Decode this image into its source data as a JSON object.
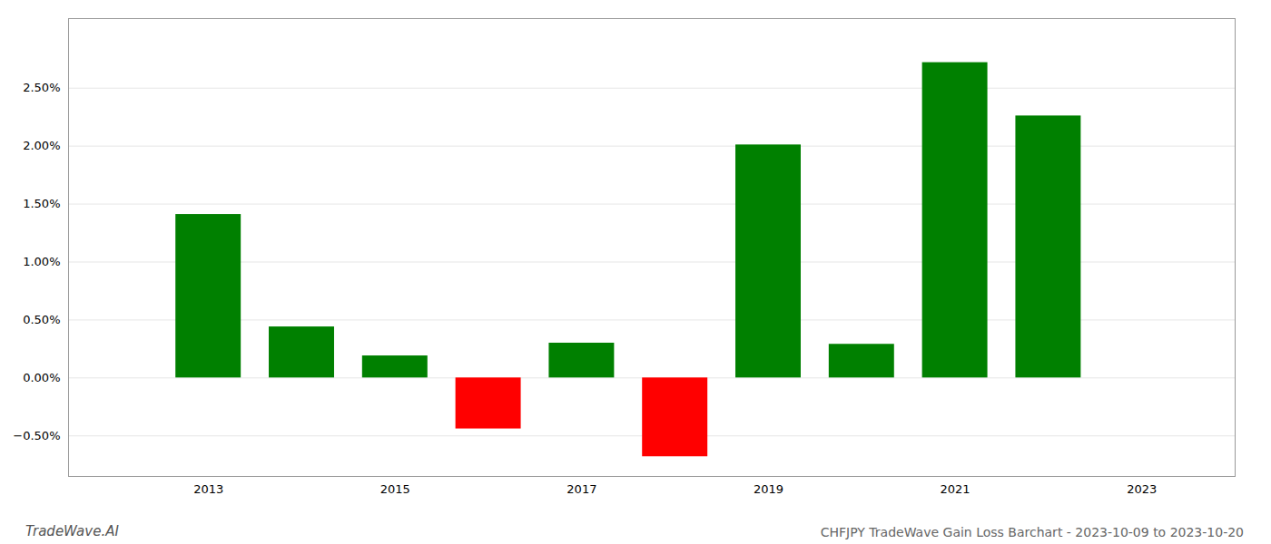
{
  "chart_data": {
    "type": "bar",
    "title": "CHFJPY TradeWave Gain Loss Barchart - 2023-10-09 to 2023-10-20",
    "annotations": [
      "TradeWave.AI"
    ],
    "x": [
      2013,
      2014,
      2015,
      2016,
      2017,
      2018,
      2019,
      2020,
      2021,
      2022
    ],
    "values": [
      1.41,
      0.44,
      0.19,
      -0.44,
      0.3,
      -0.68,
      2.01,
      0.29,
      2.72,
      2.26
    ],
    "colors": [
      "#008000",
      "#008000",
      "#008000",
      "#ff0000",
      "#008000",
      "#ff0000",
      "#008000",
      "#008000",
      "#008000",
      "#008000"
    ],
    "xlim": [
      2011.5,
      2024.0
    ],
    "xticks": [
      2013,
      2015,
      2017,
      2019,
      2021,
      2023
    ],
    "ylim": [
      -0.85,
      3.1
    ],
    "yticks": [
      {
        "value": -0.5,
        "label": "−0.50%"
      },
      {
        "value": 0.0,
        "label": "0.00%"
      },
      {
        "value": 0.5,
        "label": "0.50%"
      },
      {
        "value": 1.0,
        "label": "1.00%"
      },
      {
        "value": 1.5,
        "label": "1.50%"
      },
      {
        "value": 2.0,
        "label": "2.00%"
      },
      {
        "value": 2.5,
        "label": "2.50%"
      }
    ],
    "grid": true
  }
}
